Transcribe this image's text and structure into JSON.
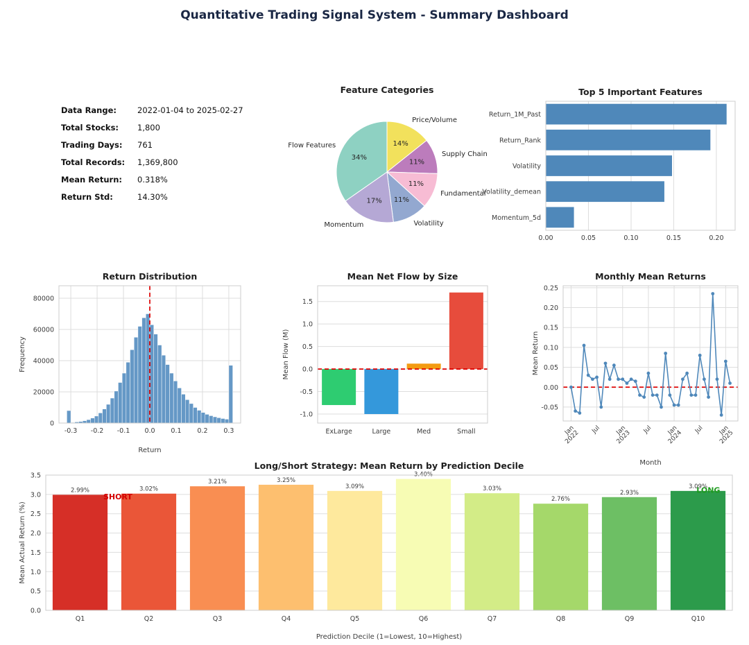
{
  "title": "Quantitative Trading Signal System - Summary Dashboard",
  "stats": {
    "rows": [
      {
        "label": "Data Range:",
        "value": "2022-01-04 to 2025-02-27"
      },
      {
        "label": "Total Stocks:",
        "value": "1,800"
      },
      {
        "label": "Trading Days:",
        "value": "761"
      },
      {
        "label": "Total Records:",
        "value": "1,369,800"
      },
      {
        "label": "Mean Return:",
        "value": "0.318%"
      },
      {
        "label": "Return Std:",
        "value": "14.30%"
      }
    ]
  },
  "chart_data": [
    {
      "type": "pie",
      "title": "Feature Categories",
      "labels": [
        "Price/Volume",
        "Supply Chain",
        "Fundamental",
        "Volatility",
        "Momentum",
        "Flow Features"
      ],
      "values": [
        14,
        11,
        11,
        11,
        17,
        34
      ],
      "pct_labels": [
        "14%",
        "11%",
        "11%",
        "11%",
        "17%",
        "34%"
      ],
      "colors": [
        "#f2e15c",
        "#bc7cbc",
        "#f7bcd4",
        "#93a8d0",
        "#b5a8d5",
        "#8ed1c2"
      ],
      "start_angle": 90,
      "direction": "clockwise",
      "legend_position": "none"
    },
    {
      "type": "barh",
      "title": "Top 5 Important Features",
      "categories": [
        "Return_1M_Past",
        "Return_Rank",
        "Volatility",
        "Volatility_demean",
        "Momentum_5d"
      ],
      "values": [
        0.212,
        0.193,
        0.148,
        0.139,
        0.033
      ],
      "color": "#4f88ba",
      "xlim": [
        0,
        0.222
      ],
      "xticks": [
        0,
        0.05,
        0.1,
        0.15,
        0.2
      ],
      "xtick_labels": [
        "0.00",
        "0.05",
        "0.10",
        "0.15",
        "0.20"
      ],
      "grid": true
    },
    {
      "type": "histogram",
      "title": "Return Distribution",
      "xlabel": "Return",
      "ylabel": "Frequency",
      "bin_start": -0.315,
      "bin_width": 0.015,
      "counts": [
        8000,
        400,
        700,
        1000,
        1500,
        2200,
        3200,
        4500,
        6500,
        9000,
        12000,
        16000,
        20500,
        26000,
        32000,
        39000,
        47000,
        55000,
        62000,
        67500,
        70000,
        63000,
        57000,
        50000,
        43500,
        37500,
        32000,
        27000,
        22500,
        18500,
        15000,
        12500,
        10000,
        8200,
        6800,
        5600,
        4700,
        4000,
        3400,
        2900,
        2500,
        37000
      ],
      "color": "#6598c6",
      "xlim": [
        -0.345,
        0.345
      ],
      "ylim": [
        0,
        88000
      ],
      "xticks": [
        -0.3,
        -0.2,
        -0.1,
        0,
        0.1,
        0.2,
        0.3
      ],
      "xtick_labels": [
        "-0.3",
        "-0.2",
        "-0.1",
        "0.0",
        "0.1",
        "0.2",
        "0.3"
      ],
      "yticks": [
        0,
        20000,
        40000,
        60000,
        80000
      ],
      "ytick_labels": [
        "0",
        "20000",
        "40000",
        "60000",
        "80000"
      ],
      "vline": {
        "x": 0,
        "color": "#dd0000",
        "style": "dashed"
      },
      "grid": true
    },
    {
      "type": "bar",
      "title": "Mean Net Flow by Size",
      "ylabel": "Mean Flow (M)",
      "categories": [
        "ExLarge",
        "Large",
        "Med",
        "Small"
      ],
      "values": [
        -0.8,
        -1.0,
        0.12,
        1.7
      ],
      "colors": [
        "#2ecc71",
        "#3498db",
        "#f39c12",
        "#e74c3c"
      ],
      "ylim": [
        -1.2,
        1.85
      ],
      "yticks": [
        -1.0,
        -0.5,
        0,
        0.5,
        1.0,
        1.5
      ],
      "ytick_labels": [
        "-1.0",
        "-0.5",
        "0.0",
        "0.5",
        "1.0",
        "1.5"
      ],
      "hline": {
        "y": 0,
        "color": "#dd0000",
        "style": "dashed"
      },
      "grid": true
    },
    {
      "type": "line",
      "title": "Monthly Mean Returns",
      "xlabel": "Month",
      "ylabel": "Mean Return",
      "values": [
        0.0,
        -0.06,
        -0.065,
        0.105,
        0.03,
        0.02,
        0.025,
        -0.05,
        0.06,
        0.02,
        0.055,
        0.02,
        0.02,
        0.01,
        0.02,
        0.015,
        -0.02,
        -0.025,
        0.035,
        -0.02,
        -0.02,
        -0.05,
        0.085,
        -0.02,
        -0.045,
        -0.045,
        0.02,
        0.035,
        -0.02,
        -0.02,
        0.08,
        0.02,
        -0.025,
        0.235,
        0.02,
        -0.07,
        0.065,
        0.01
      ],
      "color": "#4f88ba",
      "marker": "circle",
      "xlim": [
        -1.85,
        38.85
      ],
      "xtick_positions": [
        0,
        6,
        12,
        18,
        24,
        30,
        36
      ],
      "xtick_labels": [
        "Jan\n2022",
        "Jul",
        "Jan\n2023",
        "Jul",
        "Jan\n2024",
        "Jul",
        "Jan\n2025"
      ],
      "ylim": [
        -0.085,
        0.255
      ],
      "yticks": [
        -0.05,
        0,
        0.05,
        0.1,
        0.15,
        0.2,
        0.25
      ],
      "ytick_labels": [
        "-0.05",
        "0.00",
        "0.05",
        "0.10",
        "0.15",
        "0.20",
        "0.25"
      ],
      "hline": {
        "y": 0,
        "color": "#dd0000",
        "style": "dashed"
      },
      "grid": true
    },
    {
      "type": "bar-labeled",
      "title": "Long/Short Strategy: Mean Return by Prediction Decile",
      "xlabel": "Prediction Decile (1=Lowest, 10=Highest)",
      "ylabel": "Mean Actual Return (%)",
      "categories": [
        "Q1",
        "Q2",
        "Q3",
        "Q4",
        "Q5",
        "Q6",
        "Q7",
        "Q8",
        "Q9",
        "Q10"
      ],
      "values": [
        2.99,
        3.02,
        3.21,
        3.25,
        3.09,
        3.4,
        3.03,
        2.76,
        2.93,
        3.09
      ],
      "bar_labels": [
        "2.99%",
        "3.02%",
        "3.21%",
        "3.25%",
        "3.09%",
        "3.40%",
        "3.03%",
        "2.76%",
        "2.93%",
        "3.09%"
      ],
      "colors": [
        "#d62f27",
        "#ea5638",
        "#f98e52",
        "#fdbf6f",
        "#fee99d",
        "#f7fcb4",
        "#d3ec87",
        "#a5d86a",
        "#6dbf64",
        "#2c9b4b"
      ],
      "ylim": [
        0,
        3.5
      ],
      "yticks": [
        0,
        0.5,
        1.0,
        1.5,
        2.0,
        2.5,
        3.0,
        3.5
      ],
      "ytick_labels": [
        "0.0",
        "0.5",
        "1.0",
        "1.5",
        "2.0",
        "2.5",
        "3.0",
        "3.5"
      ],
      "annotations": [
        {
          "text": "SHORT",
          "color": "#d40000",
          "xfrac": 0.105,
          "y": 2.93
        },
        {
          "text": "LONG",
          "color": "#1f9b1f",
          "xfrac": 0.965,
          "y": 3.1
        }
      ],
      "grid": true
    }
  ]
}
